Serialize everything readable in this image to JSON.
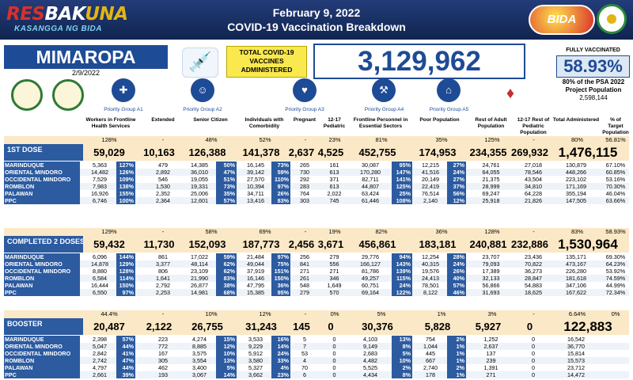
{
  "header": {
    "brand_a": "RES",
    "brand_b": "BAK",
    "brand_c": "UNA",
    "tagline": "KASANGGA NG BIDA",
    "date": "February 9, 2022",
    "subtitle": "COVID-19 Vaccination Breakdown",
    "bida_logo": "BIDA"
  },
  "summary": {
    "region": "MIMAROPA",
    "region_date": "2/9/2022",
    "total_label_1": "TOTAL COVID-19",
    "total_label_2": "VACCINES",
    "total_label_3": "ADMINISTERED",
    "total_value": "3,129,962",
    "fv_label": "FULLY VACCINATED",
    "fv_pct": "58.93%",
    "psa_1": "80% of the PSA 2022",
    "psa_2": "Project Population",
    "psa_3": "2,598,144"
  },
  "groups": [
    {
      "label": "Priority Group A1",
      "icon": "health-worker-icon"
    },
    {
      "label": "Priority Group A2",
      "icon": "senior-citizen-icon"
    },
    {
      "label": "Priority Group A3",
      "icon": "comorbidity-icon"
    },
    {
      "label": "Priority Group A4",
      "icon": "frontline-personnel-icon"
    },
    {
      "label": "Priority Group A5",
      "icon": "poor-population-icon"
    }
  ],
  "columns": [
    "Workers in Frontline Health Services",
    "Extended",
    "Senior Citizen",
    "Individuals with Comorbidity",
    "Pregnant",
    "12-17 Pediatric",
    "Frontline Personnel in Essential Sectors",
    "Poor Population",
    "Rest of Adult Population",
    "12-17 Rest of Pediatric Population",
    "Total Administered",
    "% of Target Population"
  ],
  "sections": [
    {
      "name": "1ST DOSE",
      "pcts": [
        "128%",
        "-",
        "48%",
        "52%",
        "-",
        "23%",
        "81%",
        "35%",
        "125%",
        "-",
        "80%",
        "56.81%"
      ],
      "totals": [
        "59,029",
        "10,163",
        "126,388",
        "141,378",
        "2,637",
        "4,525",
        "452,755",
        "174,953",
        "234,355",
        "269,932",
        "1,476,115"
      ],
      "rows": [
        {
          "name": "MARINDUQUE",
          "v": [
            "5,363",
            "127%",
            "479",
            "14,385",
            "50%",
            "16,145",
            "73%",
            "265",
            "161",
            "30,087",
            "95%",
            "12,215",
            "27%",
            "24,761",
            "27,018",
            "130,879",
            "67.10%"
          ]
        },
        {
          "name": "ORIENTAL MINDORO",
          "v": [
            "14,482",
            "126%",
            "2,892",
            "36,010",
            "47%",
            "39,142",
            "59%",
            "730",
            "613",
            "170,280",
            "147%",
            "41,516",
            "24%",
            "64,055",
            "78,546",
            "448,266",
            "60.85%"
          ]
        },
        {
          "name": "OCCIDENTAL MINDORO",
          "v": [
            "7,529",
            "109%",
            "546",
            "19,055",
            "51%",
            "27,570",
            "110%",
            "292",
            "371",
            "82,711",
            "141%",
            "20,149",
            "27%",
            "21,375",
            "43,504",
            "223,102",
            "53.16%"
          ]
        },
        {
          "name": "ROMBLON",
          "v": [
            "7,983",
            "138%",
            "1,530",
            "19,331",
            "73%",
            "10,394",
            "97%",
            "283",
            "613",
            "44,807",
            "125%",
            "22,419",
            "37%",
            "28,999",
            "34,810",
            "171,169",
            "70.30%"
          ]
        },
        {
          "name": "PALAWAN",
          "v": [
            "16,926",
            "155%",
            "2,352",
            "25,006",
            "35%",
            "34,711",
            "26%",
            "764",
            "2,022",
            "63,424",
            "25%",
            "76,514",
            "56%",
            "69,247",
            "64,228",
            "355,194",
            "46.04%"
          ]
        },
        {
          "name": "PPC",
          "v": [
            "6,746",
            "100%",
            "2,364",
            "12,601",
            "57%",
            "13,416",
            "83%",
            "303",
            "745",
            "61,446",
            "108%",
            "2,140",
            "12%",
            "25,918",
            "21,826",
            "147,505",
            "63.66%"
          ]
        }
      ]
    },
    {
      "name": "COMPLETED 2 DOSES",
      "pcts": [
        "129%",
        "-",
        "58%",
        "69%",
        "-",
        "19%",
        "82%",
        "36%",
        "128%",
        "-",
        "83%",
        "58.93%"
      ],
      "totals": [
        "59,432",
        "11,730",
        "152,093",
        "187,773",
        "2,456",
        "3,671",
        "456,861",
        "183,181",
        "240,881",
        "232,886",
        "1,530,964"
      ],
      "rows": [
        {
          "name": "MARINDUQUE",
          "v": [
            "6,096",
            "144%",
            "861",
            "17,022",
            "59%",
            "21,484",
            "97%",
            "256",
            "279",
            "29,776",
            "94%",
            "12,254",
            "28%",
            "23,707",
            "23,436",
            "135,171",
            "69.30%"
          ]
        },
        {
          "name": "ORIENTAL MINDORO",
          "v": [
            "14,878",
            "129%",
            "3,377",
            "48,114",
            "62%",
            "49,044",
            "75%",
            "841",
            "556",
            "166,127",
            "143%",
            "40,315",
            "24%",
            "79,093",
            "70,822",
            "473,167",
            "64.23%"
          ]
        },
        {
          "name": "OCCIDENTAL MINDORO",
          "v": [
            "8,880",
            "128%",
            "806",
            "23,109",
            "62%",
            "37,919",
            "151%",
            "271",
            "271",
            "81,786",
            "139%",
            "19,576",
            "26%",
            "17,389",
            "36,273",
            "226,280",
            "53.92%"
          ]
        },
        {
          "name": "ROMBLON",
          "v": [
            "6,584",
            "114%",
            "1,641",
            "21,990",
            "83%",
            "16,146",
            "150%",
            "261",
            "346",
            "49,257",
            "115%",
            "24,413",
            "40%",
            "32,133",
            "28,847",
            "181,618",
            "74.59%"
          ]
        },
        {
          "name": "PALAWAN",
          "v": [
            "16,444",
            "150%",
            "2,792",
            "26,877",
            "38%",
            "47,795",
            "36%",
            "548",
            "1,649",
            "60,751",
            "24%",
            "78,501",
            "57%",
            "56,866",
            "54,883",
            "347,106",
            "44.99%"
          ]
        },
        {
          "name": "PPC",
          "v": [
            "6,550",
            "97%",
            "2,253",
            "14,981",
            "68%",
            "15,385",
            "95%",
            "279",
            "570",
            "69,164",
            "122%",
            "8,122",
            "46%",
            "31,693",
            "18,625",
            "167,622",
            "72.34%"
          ]
        }
      ]
    },
    {
      "name": "BOOSTER",
      "pcts": [
        "44.4%",
        "-",
        "10%",
        "12%",
        "-",
        "0%",
        "5%",
        "1%",
        "3%",
        "-",
        "6.64%",
        "0%"
      ],
      "totals": [
        "20,487",
        "2,122",
        "26,755",
        "31,243",
        "145",
        "0",
        "30,376",
        "5,828",
        "5,927",
        "0",
        "122,883"
      ],
      "rows": [
        {
          "name": "MARINDUQUE",
          "v": [
            "2,398",
            "57%",
            "223",
            "4,274",
            "15%",
            "3,533",
            "16%",
            "5",
            "0",
            "4,103",
            "13%",
            "754",
            "2%",
            "1,252",
            "0",
            "16,542",
            ""
          ]
        },
        {
          "name": "ORIENTAL MINDORO",
          "v": [
            "5,047",
            "44%",
            "772",
            "8,885",
            "12%",
            "9,229",
            "14%",
            "7",
            "0",
            "9,149",
            "8%",
            "1,044",
            "1%",
            "2,637",
            "0",
            "36,770",
            ""
          ]
        },
        {
          "name": "OCCIDENTAL MINDORO",
          "v": [
            "2,842",
            "41%",
            "167",
            "3,575",
            "10%",
            "5,912",
            "24%",
            "53",
            "0",
            "2,683",
            "5%",
            "445",
            "1%",
            "137",
            "0",
            "15,814",
            ""
          ]
        },
        {
          "name": "ROMBLON",
          "v": [
            "2,742",
            "47%",
            "305",
            "3,554",
            "13%",
            "3,580",
            "33%",
            "4",
            "0",
            "4,482",
            "10%",
            "667",
            "1%",
            "239",
            "0",
            "15,573",
            ""
          ]
        },
        {
          "name": "PALAWAN",
          "v": [
            "4,797",
            "44%",
            "462",
            "3,400",
            "5%",
            "5,327",
            "4%",
            "70",
            "0",
            "5,525",
            "2%",
            "2,740",
            "2%",
            "1,391",
            "0",
            "23,712",
            ""
          ]
        },
        {
          "name": "PPC",
          "v": [
            "2,661",
            "39%",
            "193",
            "3,067",
            "14%",
            "3,662",
            "23%",
            "6",
            "0",
            "4,434",
            "8%",
            "178",
            "1%",
            "271",
            "0",
            "14,472",
            ""
          ]
        }
      ]
    }
  ]
}
